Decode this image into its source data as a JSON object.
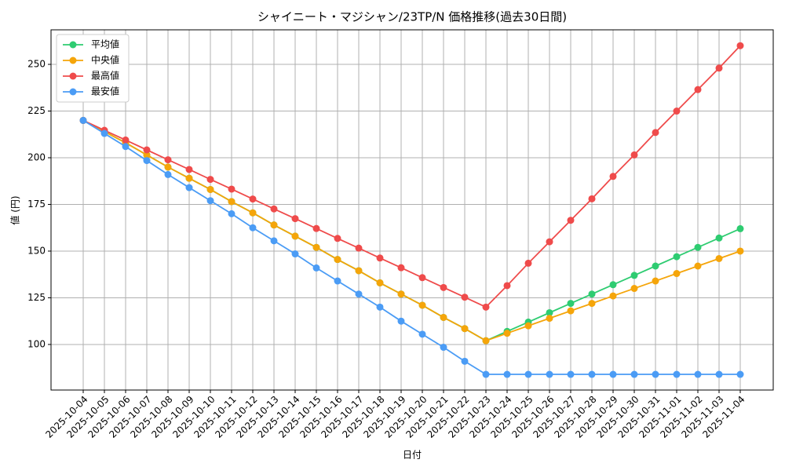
{
  "chart_data": {
    "type": "line",
    "title": "シャイニート・マジシャン/23TP/N 価格推移(過去30日間)",
    "x_label": "日付",
    "y_label": "値 (円)",
    "categories": [
      "2025-10-04",
      "2025-10-05",
      "2025-10-06",
      "2025-10-07",
      "2025-10-08",
      "2025-10-09",
      "2025-10-10",
      "2025-10-11",
      "2025-10-12",
      "2025-10-13",
      "2025-10-14",
      "2025-10-15",
      "2025-10-16",
      "2025-10-17",
      "2025-10-18",
      "2025-10-19",
      "2025-10-20",
      "2025-10-21",
      "2025-10-22",
      "2025-10-23",
      "2025-10-24",
      "2025-10-25",
      "2025-10-26",
      "2025-10-27",
      "2025-10-28",
      "2025-10-29",
      "2025-10-30",
      "2025-10-31",
      "2025-11-01",
      "2025-11-02",
      "2025-11-03",
      "2025-11-04"
    ],
    "series": [
      {
        "name": "平均値",
        "color": "#2ecc71",
        "values": [
          220,
          214,
          208,
          201.5,
          195,
          189,
          183,
          176.5,
          170.5,
          164,
          158,
          152,
          145.5,
          139.5,
          133,
          127,
          121,
          114.5,
          108.5,
          102,
          107,
          112,
          117,
          122,
          127,
          132,
          137,
          142,
          147,
          152,
          157,
          162
        ]
      },
      {
        "name": "中央値",
        "color": "#f5a50a",
        "values": [
          220,
          214,
          208,
          201.5,
          195,
          189,
          183,
          176.5,
          170.5,
          164,
          158,
          152,
          145.5,
          139.5,
          133,
          127,
          121,
          114.5,
          108.5,
          102,
          106,
          110,
          114,
          118,
          122,
          126,
          130,
          134,
          138,
          142,
          146,
          150
        ]
      },
      {
        "name": "最高値",
        "color": "#ef4b4b",
        "values": [
          220,
          214.7,
          209.5,
          204.2,
          198.9,
          193.7,
          188.4,
          183.2,
          177.9,
          172.6,
          167.4,
          162.1,
          156.8,
          151.6,
          146.3,
          141.1,
          135.8,
          130.5,
          125.3,
          120,
          131.5,
          143.5,
          155,
          166.5,
          178,
          190,
          201.5,
          213.5,
          225,
          236.5,
          248,
          260
        ]
      },
      {
        "name": "最安値",
        "color": "#4b9cf5",
        "values": [
          220,
          213,
          206,
          198.5,
          191,
          184,
          177,
          170,
          162.5,
          155.5,
          148.5,
          141,
          134,
          127,
          120,
          112.5,
          105.5,
          98.5,
          91,
          84,
          84,
          84,
          84,
          84,
          84,
          84,
          84,
          84,
          84,
          84,
          84,
          84
        ]
      }
    ],
    "ylim": [
      75.6,
      268.5
    ],
    "yticks": [
      100,
      125,
      150,
      175,
      200,
      225,
      250
    ],
    "grid": true,
    "legend": "upper-left"
  }
}
